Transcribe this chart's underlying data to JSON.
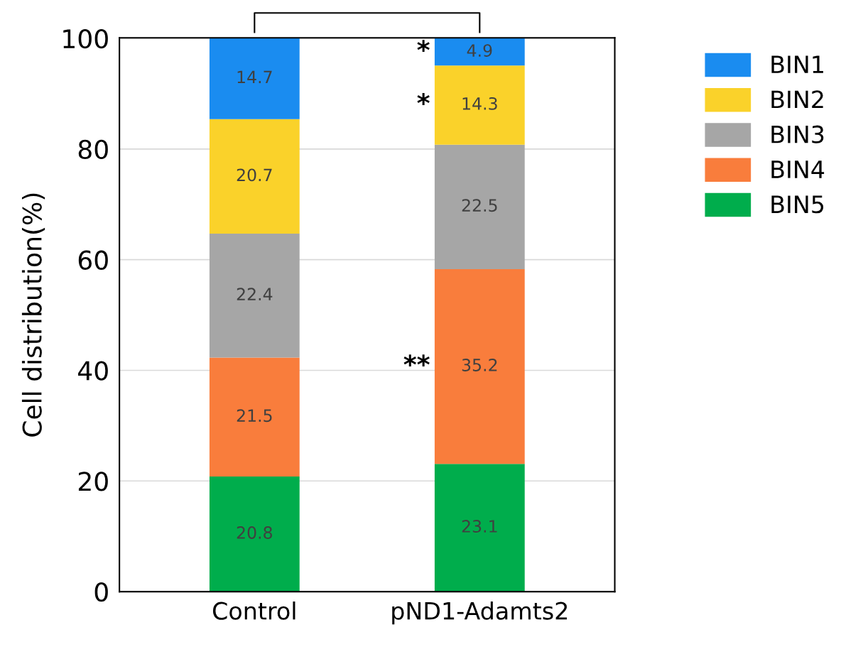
{
  "chart_data": {
    "type": "bar",
    "stacked": true,
    "ylabel": "Cell distribution(%)",
    "categories": [
      "Control",
      "pND1-Adamts2"
    ],
    "series": [
      {
        "name": "BIN5",
        "color": "#00ad4c",
        "values": [
          20.8,
          23.1
        ]
      },
      {
        "name": "BIN4",
        "color": "#f97d3c",
        "values": [
          21.5,
          35.2
        ]
      },
      {
        "name": "BIN3",
        "color": "#a6a6a6",
        "values": [
          22.4,
          22.5
        ]
      },
      {
        "name": "BIN2",
        "color": "#fad22a",
        "values": [
          20.7,
          14.3
        ]
      },
      {
        "name": "BIN1",
        "color": "#1a8cf0",
        "values": [
          14.7,
          4.9
        ]
      }
    ],
    "ylim": [
      0,
      100.1
    ],
    "yticks": [
      0,
      20,
      40,
      60,
      80,
      100
    ],
    "grid": "y",
    "legend": "right",
    "data_labels": true,
    "annotations": [
      "*",
      "*",
      "**"
    ]
  }
}
